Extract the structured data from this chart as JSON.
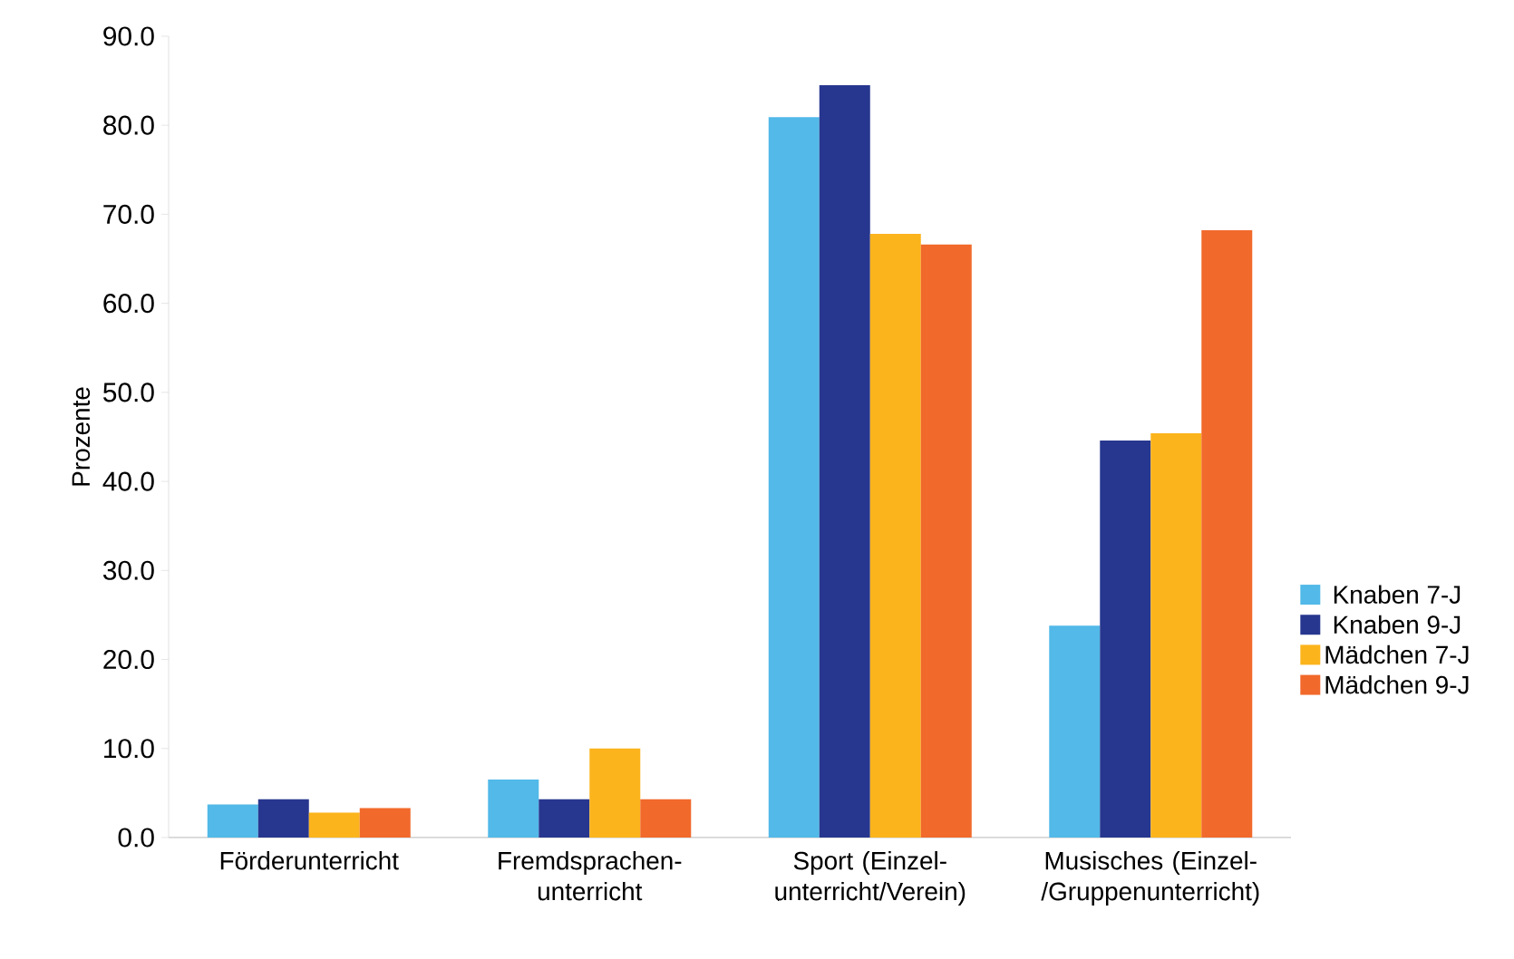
{
  "chart_data": {
    "type": "bar",
    "ylabel": "Prozente",
    "categories": [
      "Förderunterricht",
      "Fremdsprachen-unterricht",
      "Sport (Einzel-unterricht/Verein)",
      "Musisches (Einzel-/Gruppenunterricht)"
    ],
    "series": [
      {
        "name": "Knaben 7-J",
        "color": "#52b9e8",
        "values": [
          3.7,
          6.5,
          80.9,
          23.8
        ]
      },
      {
        "name": "Knaben 9-J",
        "color": "#27378f",
        "values": [
          4.3,
          4.3,
          84.5,
          44.6
        ]
      },
      {
        "name": "Mädchen 7-J",
        "color": "#fbb41c",
        "values": [
          2.8,
          10.0,
          67.8,
          45.4
        ]
      },
      {
        "name": "Mädchen 9-J",
        "color": "#f1692b",
        "values": [
          3.3,
          4.3,
          66.6,
          68.2
        ]
      }
    ],
    "ylim": [
      0,
      90
    ],
    "yticks": [
      {
        "value": 0,
        "label": "0.0"
      },
      {
        "value": 10,
        "label": "10.0"
      },
      {
        "value": 20,
        "label": "20.0"
      },
      {
        "value": 30,
        "label": "30.0"
      },
      {
        "value": 40,
        "label": "40.0"
      },
      {
        "value": 50,
        "label": "50.0"
      },
      {
        "value": 60,
        "label": "60.0"
      },
      {
        "value": 70,
        "label": "70.0"
      },
      {
        "value": 80,
        "label": "80.0"
      },
      {
        "value": 90,
        "label": "90.0"
      }
    ],
    "legend": "right"
  }
}
